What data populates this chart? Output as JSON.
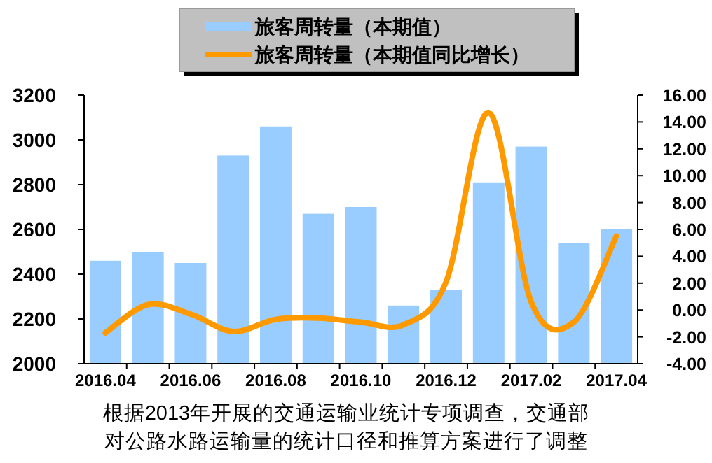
{
  "chart_data": {
    "type": "bar",
    "categories": [
      "2016.04",
      null,
      "2016.06",
      null,
      "2016.08",
      null,
      "2016.10",
      null,
      "2016.12",
      null,
      "2017.02",
      null,
      "2017.04"
    ],
    "series": [
      {
        "name": "旅客周转量（本期值）",
        "color": "#99ccff",
        "values": [
          2460,
          2500,
          2450,
          2930,
          3060,
          2670,
          2700,
          2260,
          2330,
          2810,
          2970,
          2540,
          2600
        ]
      },
      {
        "name": "旅客周转量（本期值同比增长）",
        "type": "line",
        "axis": "y2",
        "color": "#ff9900",
        "values": [
          -1.7,
          0.4,
          -0.3,
          -1.6,
          -0.7,
          -0.6,
          -0.9,
          -1.1,
          2.1,
          14.7,
          0.6,
          -0.9,
          5.5
        ]
      }
    ],
    "ylim": [
      2000,
      3200
    ],
    "yticks": [
      2000,
      2200,
      2400,
      2600,
      2800,
      3000,
      3200
    ],
    "y2lim": [
      -4,
      16
    ],
    "y2ticks": [
      {
        "value": -4,
        "label": "-4.00"
      },
      {
        "value": -2,
        "label": "-2.00"
      },
      {
        "value": 0,
        "label": "0.00"
      },
      {
        "value": 2,
        "label": "2.00"
      },
      {
        "value": 4,
        "label": "4.00"
      },
      {
        "value": 6,
        "label": "6.00"
      },
      {
        "value": 8,
        "label": "8.00"
      },
      {
        "value": 10,
        "label": "10.00"
      },
      {
        "value": 12,
        "label": "12.00"
      },
      {
        "value": 14,
        "label": "14.00"
      },
      {
        "value": 16,
        "label": "16.00"
      }
    ],
    "legend": "top",
    "grid": false,
    "annotations": [
      "根据2013年开展的交通运输业统计专项调查，交通部对公路水路运输量的统计口径和推算方案进行了调整"
    ]
  }
}
